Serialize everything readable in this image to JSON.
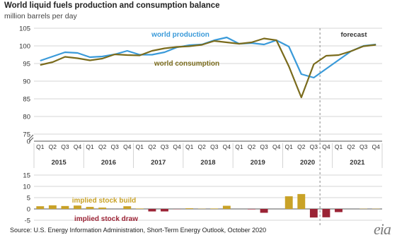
{
  "chart_data": [
    {
      "type": "line",
      "title": "World liquid fuels production and consumption balance",
      "subtitle": "million barrels per day",
      "ylim": [
        0,
        105
      ],
      "y_axis_break": true,
      "yticks": [
        0,
        75,
        80,
        85,
        90,
        95,
        100,
        105
      ],
      "ytick_labels": [
        "0",
        "75",
        "80",
        "85",
        "90",
        "95",
        "100",
        "105"
      ],
      "quarters": [
        "Q1",
        "Q2",
        "Q3",
        "Q4",
        "Q1",
        "Q2",
        "Q3",
        "Q4",
        "Q1",
        "Q2",
        "Q3",
        "Q4",
        "Q1",
        "Q2",
        "Q3",
        "Q4",
        "Q1",
        "Q2",
        "Q3",
        "Q4",
        "Q1",
        "Q2",
        "Q3",
        "Q4",
        "Q1",
        "Q2",
        "Q3",
        "Q4"
      ],
      "years": [
        "2015",
        "2016",
        "2017",
        "2018",
        "2019",
        "2020",
        "2021"
      ],
      "forecast_label": "forecast",
      "forecast_start_index": 23,
      "grid": true,
      "series": [
        {
          "name": "world production",
          "color": "#3a9ad9",
          "values": [
            95.8,
            97.0,
            98.2,
            98.0,
            96.8,
            97.0,
            97.6,
            98.6,
            97.5,
            97.5,
            98.2,
            99.6,
            100.2,
            100.4,
            101.6,
            102.4,
            100.6,
            100.8,
            100.4,
            101.6,
            99.8,
            92.0,
            91.0,
            93.5,
            96.0,
            98.5,
            100.0,
            100.4
          ]
        },
        {
          "name": "world consumption",
          "color": "#7a6b1c",
          "values": [
            94.6,
            95.4,
            96.9,
            96.5,
            95.9,
            96.4,
            97.6,
            97.4,
            97.3,
            98.6,
            99.3,
            99.7,
            99.9,
            100.3,
            101.4,
            101.0,
            100.6,
            101.0,
            102.1,
            101.6,
            94.2,
            85.4,
            94.8,
            97.2,
            97.4,
            98.5,
            99.9,
            100.3
          ]
        }
      ]
    },
    {
      "type": "bar",
      "ylim": [
        -5,
        15
      ],
      "yticks": [
        -5,
        0,
        5,
        10,
        15
      ],
      "ytick_labels": [
        "-5",
        "0",
        "5",
        "10",
        "15"
      ],
      "series": [
        {
          "name": "implied stock build",
          "color": "#c9a227",
          "values": [
            1.2,
            1.6,
            1.3,
            1.5,
            0.9,
            0.6,
            0.0,
            1.2,
            0.2,
            -1.1,
            -1.1,
            -0.1,
            0.3,
            0.1,
            0.2,
            1.4,
            0.0,
            -0.2,
            -1.7,
            0.0,
            5.6,
            6.6,
            -3.8,
            -3.7,
            -1.4,
            0.0,
            0.1,
            0.1
          ]
        },
        {
          "name": "implied stock draw",
          "color": "#9b2335"
        }
      ]
    }
  ],
  "source": "Source: U.S. Energy Information Administration, Short-Term Energy Outlook, October 2020",
  "logo_text": "eia",
  "colors": {
    "grid": "#c8c8c8",
    "axis": "#555555",
    "forecast_line": "#888888",
    "negative_bar": "#9b2335",
    "positive_bar": "#c9a227"
  }
}
